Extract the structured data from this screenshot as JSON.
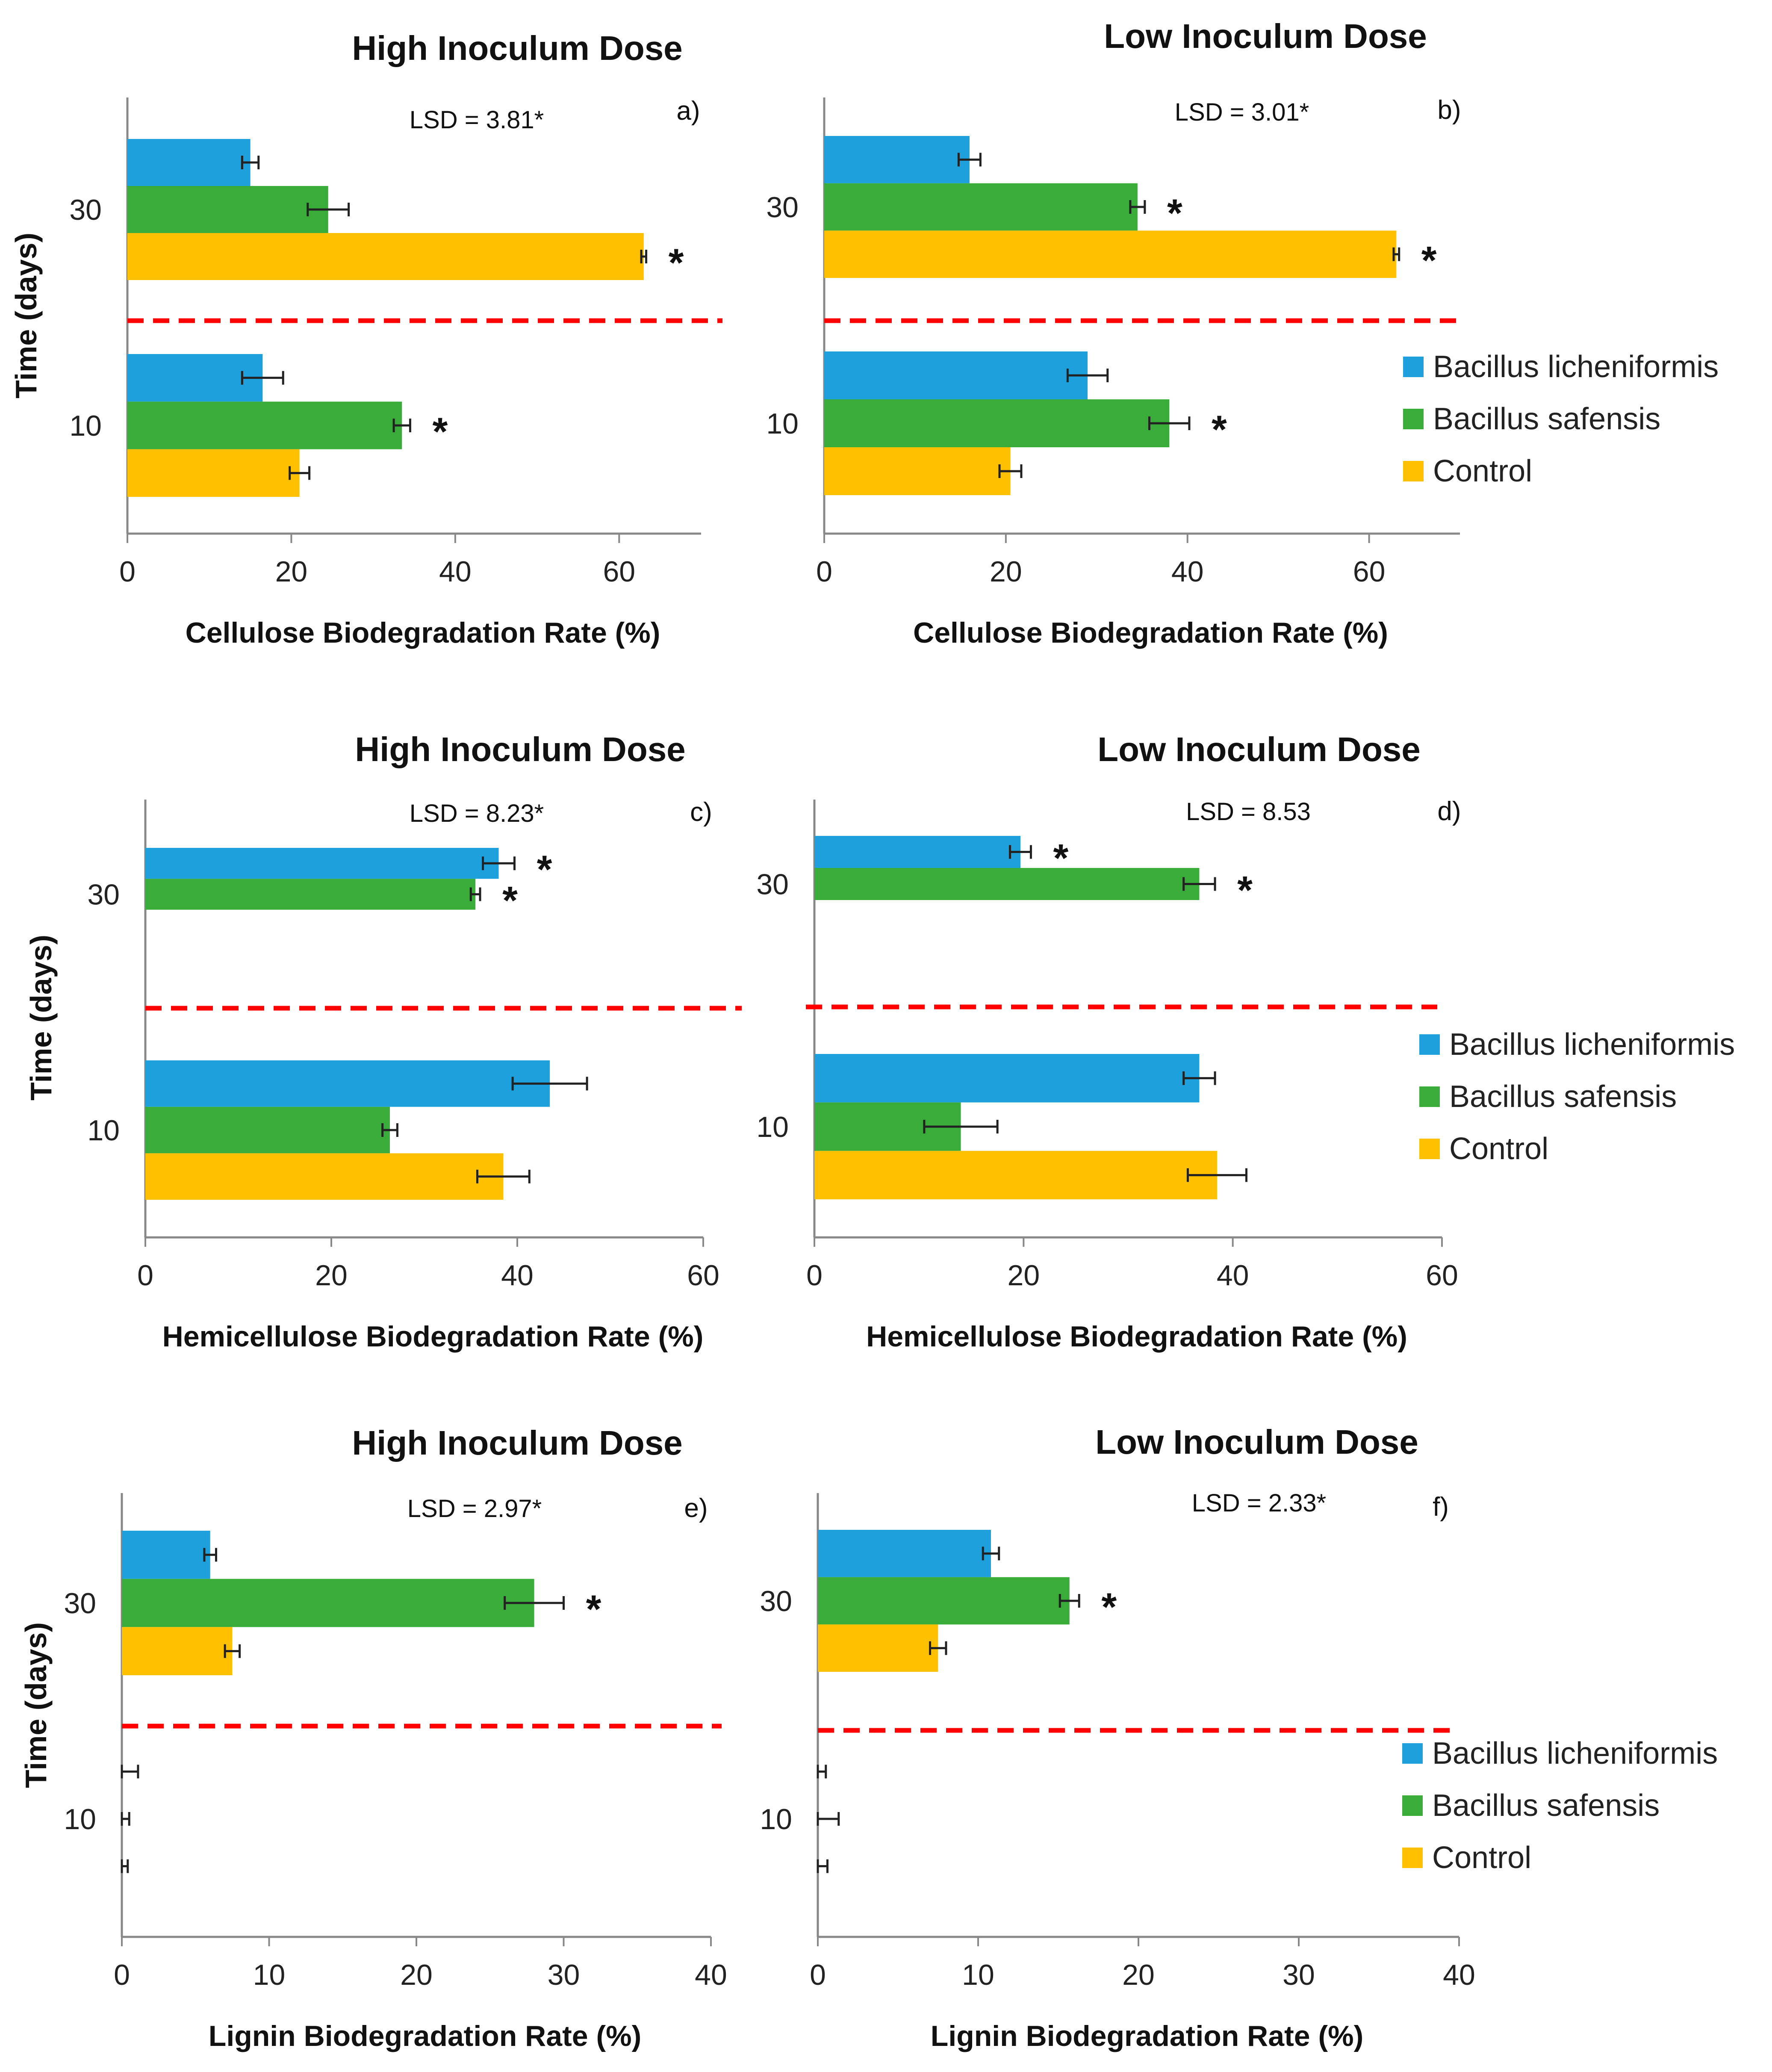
{
  "colors": {
    "Bacillus licheniformis": "#1ea0dc",
    "Bacillus safensis": "#3aac3a",
    "Control": "#ffc000",
    "divider": "#ff0000"
  },
  "legend": [
    "Bacillus licheniformis",
    "Bacillus safensis",
    "Control"
  ],
  "chart_data": [
    {
      "type": "bar",
      "orientation": "horizontal",
      "title": "High Inoculum Dose",
      "panel": "a)",
      "lsd": "LSD = 3.81*",
      "xlabel": "Cellulose Biodegradation Rate (%)",
      "ylabel": "Time (days)",
      "xlim": [
        0,
        70
      ],
      "xticks": [
        0,
        20,
        40,
        60
      ],
      "groups": [
        "30",
        "10"
      ],
      "series": [
        {
          "name": "Bacillus licheniformis",
          "values": [
            15,
            16.5
          ],
          "errors": [
            1,
            2.5
          ],
          "sig": [
            false,
            false
          ]
        },
        {
          "name": "Bacillus safensis",
          "values": [
            24.5,
            33.5
          ],
          "errors": [
            2.5,
            1
          ],
          "sig": [
            false,
            true
          ]
        },
        {
          "name": "Control",
          "values": [
            63,
            21
          ],
          "errors": [
            0.3,
            1.2
          ],
          "sig": [
            true,
            false
          ]
        }
      ]
    },
    {
      "type": "bar",
      "orientation": "horizontal",
      "title": "Low Inoculum Dose",
      "panel": "b)",
      "lsd": "LSD = 3.01*",
      "xlabel": "Cellulose Biodegradation Rate (%)",
      "ylabel": "",
      "xlim": [
        0,
        70
      ],
      "xticks": [
        0,
        20,
        40,
        60
      ],
      "groups": [
        "30",
        "10"
      ],
      "series": [
        {
          "name": "Bacillus licheniformis",
          "values": [
            16,
            29
          ],
          "errors": [
            1.2,
            2.2
          ],
          "sig": [
            false,
            false
          ]
        },
        {
          "name": "Bacillus safensis",
          "values": [
            34.5,
            38
          ],
          "errors": [
            0.8,
            2.2
          ],
          "sig": [
            true,
            true
          ]
        },
        {
          "name": "Control",
          "values": [
            63,
            20.5
          ],
          "errors": [
            0.3,
            1.2
          ],
          "sig": [
            true,
            false
          ]
        }
      ]
    },
    {
      "type": "bar",
      "orientation": "horizontal",
      "title": "High Inoculum Dose",
      "panel": "c)",
      "lsd": "LSD = 8.23*",
      "xlabel": "Hemicellulose Biodegradation Rate (%)",
      "ylabel": "Time (days)",
      "xlim": [
        0,
        60
      ],
      "xticks": [
        0,
        20,
        40,
        60
      ],
      "groups": [
        "30",
        "10"
      ],
      "series": [
        {
          "name": "Bacillus licheniformis",
          "values": [
            38,
            43.5
          ],
          "errors": [
            1.7,
            4
          ],
          "sig": [
            true,
            false
          ]
        },
        {
          "name": "Bacillus safensis",
          "values": [
            35.5,
            26.3
          ],
          "errors": [
            0.5,
            0.8
          ],
          "sig": [
            true,
            false
          ]
        },
        {
          "name": "Control",
          "values": [
            0,
            38.5
          ],
          "errors": [
            0,
            2.8
          ],
          "sig": [
            false,
            false
          ]
        }
      ]
    },
    {
      "type": "bar",
      "orientation": "horizontal",
      "title": "Low Inoculum Dose",
      "panel": "d)",
      "lsd": "LSD = 8.53",
      "xlabel": "Hemicellulose Biodegradation Rate (%)",
      "ylabel": "",
      "xlim": [
        0,
        60
      ],
      "xticks": [
        0,
        20,
        40,
        60
      ],
      "groups": [
        "30",
        "10"
      ],
      "series": [
        {
          "name": "Bacillus licheniformis",
          "values": [
            19.7,
            36.8
          ],
          "errors": [
            1,
            1.5
          ],
          "sig": [
            true,
            false
          ]
        },
        {
          "name": "Bacillus safensis",
          "values": [
            36.8,
            14
          ],
          "errors": [
            1.5,
            3.5
          ],
          "sig": [
            true,
            false
          ]
        },
        {
          "name": "Control",
          "values": [
            0,
            38.5
          ],
          "errors": [
            0,
            2.8
          ],
          "sig": [
            false,
            false
          ]
        }
      ]
    },
    {
      "type": "bar",
      "orientation": "horizontal",
      "title": "High Inoculum Dose",
      "panel": "e)",
      "lsd": "LSD = 2.97*",
      "xlabel": "Lignin Biodegradation Rate (%)",
      "ylabel": "Time (days)",
      "xlim": [
        0,
        40
      ],
      "xticks": [
        0,
        10,
        20,
        30,
        40
      ],
      "groups": [
        "30",
        "10"
      ],
      "series": [
        {
          "name": "Bacillus licheniformis",
          "values": [
            6,
            0.1
          ],
          "errors": [
            0.4,
            1
          ],
          "sig": [
            false,
            false
          ]
        },
        {
          "name": "Bacillus safensis",
          "values": [
            28,
            0.1
          ],
          "errors": [
            2,
            0.4
          ],
          "sig": [
            true,
            false
          ]
        },
        {
          "name": "Control",
          "values": [
            7.5,
            0.1
          ],
          "errors": [
            0.5,
            0.3
          ],
          "sig": [
            false,
            false
          ]
        }
      ]
    },
    {
      "type": "bar",
      "orientation": "horizontal",
      "title": "Low Inoculum Dose",
      "panel": "f)",
      "lsd": "LSD = 2.33*",
      "xlabel": "Lignin Biodegradation Rate (%)",
      "ylabel": "",
      "xlim": [
        0,
        40
      ],
      "xticks": [
        0,
        10,
        20,
        30,
        40
      ],
      "groups": [
        "30",
        "10"
      ],
      "series": [
        {
          "name": "Bacillus licheniformis",
          "values": [
            10.8,
            0.1
          ],
          "errors": [
            0.5,
            0.4
          ],
          "sig": [
            false,
            false
          ]
        },
        {
          "name": "Bacillus safensis",
          "values": [
            15.7,
            0.1
          ],
          "errors": [
            0.6,
            1.2
          ],
          "sig": [
            true,
            false
          ]
        },
        {
          "name": "Control",
          "values": [
            7.5,
            0.1
          ],
          "errors": [
            0.5,
            0.5
          ],
          "sig": [
            false,
            false
          ]
        }
      ]
    }
  ]
}
